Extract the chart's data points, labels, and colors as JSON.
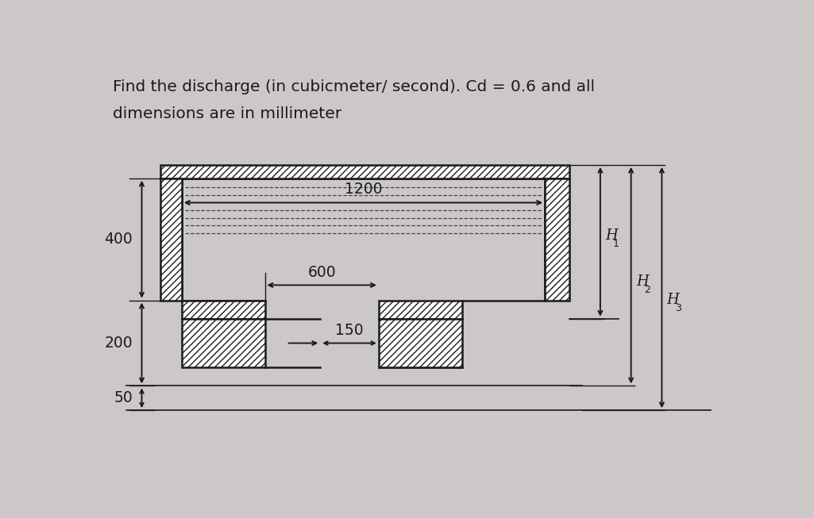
{
  "title_line1": "Find the discharge (in cubicmeter/ second). Cd = 0.6 and all",
  "title_line2": "dimensions are in millimeter",
  "bg_color": "#cdc8c8",
  "line_color": "#1a1a1a",
  "label_1200": "1200",
  "label_600": "600",
  "label_400": "400",
  "label_200": "200",
  "label_50": "50",
  "label_150": "150",
  "label_H1": "H1",
  "label_H2": "H2",
  "label_H3": "H3",
  "title_fontsize": 14.5,
  "label_fontsize": 13.5,
  "hfontsize": 13
}
